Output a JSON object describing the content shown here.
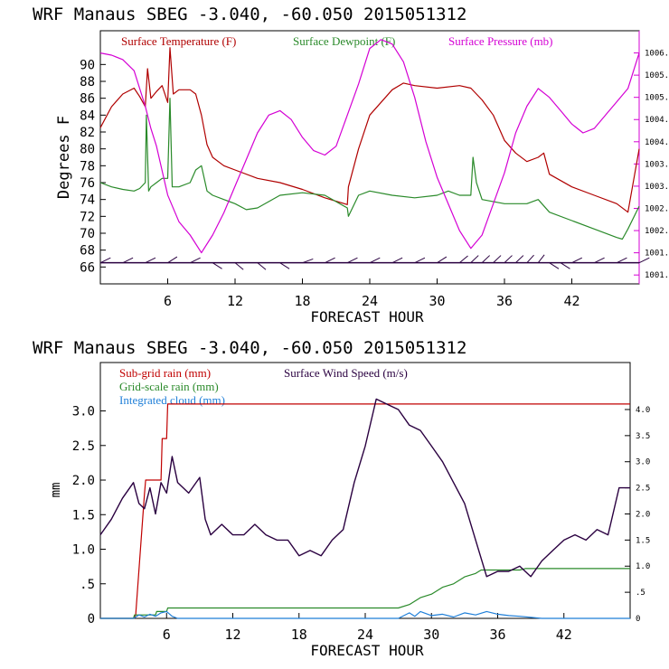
{
  "colors": {
    "temperature": "#b00000",
    "dewpoint": "#2a8a2a",
    "pressure": "#d400d4",
    "wind": "#2a0040",
    "subgrid_rain": "#c00000",
    "grid_rain": "#2a8a2a",
    "cloud": "#1f7fd8",
    "axis": "#000000"
  },
  "chart_data": [
    {
      "type": "line",
      "title": "WRF   Manaus SBEG   -3.040, -60.050  2015051312",
      "xlabel": "FORECAST HOUR",
      "ylabel": "Degrees F",
      "x_ticks": [
        "6",
        "12",
        "18",
        "24",
        "30",
        "36",
        "42"
      ],
      "x_tick_values": [
        6,
        12,
        18,
        24,
        30,
        36,
        42
      ],
      "xlim": [
        0,
        48
      ],
      "y_ticks": [
        "66",
        "68",
        "70",
        "72",
        "74",
        "76",
        "78",
        "80",
        "82",
        "84",
        "86",
        "88",
        "90"
      ],
      "y_tick_values": [
        66,
        68,
        70,
        72,
        74,
        76,
        78,
        80,
        82,
        84,
        86,
        88,
        90
      ],
      "ylim": [
        64,
        94
      ],
      "y2_ticks": [
        "1001.0",
        "1001.5",
        "1002.0",
        "1002.5",
        "1003.0",
        "1003.5",
        "1004.0",
        "1004.5",
        "1005.0",
        "1005.5",
        "1006.0"
      ],
      "y2_tick_values": [
        1001.0,
        1001.5,
        1002.0,
        1002.5,
        1003.0,
        1003.5,
        1004.0,
        1004.5,
        1005.0,
        1005.5,
        1006.0
      ],
      "y2lim": [
        1000.8,
        1006.5
      ],
      "grid": false,
      "legend": [
        "Surface Temperature (F)",
        "Surface Dewpoint (F)",
        "Surface Pressure (mb)"
      ],
      "legend_placement": "top",
      "series": [
        {
          "name": "Surface Temperature (F)",
          "axis": "left",
          "x": [
            0,
            1,
            2,
            3,
            3.5,
            4,
            4.2,
            4.5,
            5,
            5.5,
            6,
            6.2,
            6.5,
            7,
            8,
            8.5,
            9,
            9.5,
            10,
            11,
            12,
            14,
            16,
            18,
            20,
            22,
            22.1,
            23,
            24,
            26,
            27,
            28,
            30,
            32,
            33,
            34,
            35,
            36,
            37,
            38,
            39,
            39.5,
            40,
            42,
            44,
            46,
            47,
            48
          ],
          "y": [
            82.5,
            85,
            86.5,
            87.2,
            86.2,
            85,
            89.5,
            86,
            86.8,
            87.5,
            85.5,
            92,
            86.5,
            87,
            87,
            86.5,
            84,
            80.5,
            79,
            78,
            77.5,
            76.5,
            76,
            75.2,
            74.2,
            73.4,
            75.5,
            80,
            84,
            87,
            87.8,
            87.5,
            87.2,
            87.5,
            87.2,
            85.8,
            84,
            81,
            79.5,
            78.5,
            79,
            79.5,
            77,
            75.5,
            74.5,
            73.5,
            72.5,
            80
          ]
        },
        {
          "name": "Surface Dewpoint (F)",
          "axis": "left",
          "x": [
            0,
            1,
            2,
            3,
            3.5,
            4,
            4.1,
            4.3,
            4.5,
            5,
            5.5,
            6,
            6.2,
            6.4,
            7,
            8,
            8.5,
            9,
            9.5,
            10,
            11,
            12,
            13,
            14,
            16,
            18,
            20,
            22,
            22.1,
            23,
            24,
            26,
            28,
            30,
            31,
            32,
            33,
            33.2,
            33.5,
            34,
            36,
            38,
            39,
            40,
            42,
            44,
            46,
            46.5,
            47,
            48
          ],
          "y": [
            76,
            75.5,
            75.2,
            75,
            75.3,
            76,
            84,
            75,
            75.5,
            76,
            76.5,
            76.5,
            86,
            75.5,
            75.5,
            76,
            77.5,
            78,
            75,
            74.5,
            74,
            73.5,
            72.8,
            73,
            74.5,
            74.8,
            74.5,
            73,
            72,
            74.5,
            75,
            74.5,
            74.2,
            74.5,
            75,
            74.5,
            74.5,
            79,
            76,
            74,
            73.5,
            73.5,
            74,
            72.5,
            71.5,
            70.5,
            69.5,
            69.3,
            70.5,
            73.2
          ]
        },
        {
          "name": "Surface Pressure (mb)",
          "axis": "right",
          "x": [
            0,
            1,
            2,
            3,
            4,
            4.5,
            5,
            6,
            7,
            8,
            9,
            10,
            11,
            12,
            13,
            14,
            15,
            16,
            17,
            18,
            19,
            20,
            21,
            22,
            23,
            24,
            25,
            26,
            27,
            28,
            29,
            30,
            31,
            32,
            33,
            34,
            35,
            36,
            37,
            38,
            39,
            40,
            41,
            42,
            43,
            44,
            45,
            46,
            47,
            48
          ],
          "y": [
            1006.0,
            1005.95,
            1005.85,
            1005.6,
            1004.8,
            1004.3,
            1003.9,
            1002.8,
            1002.2,
            1001.9,
            1001.5,
            1001.9,
            1002.4,
            1003.0,
            1003.6,
            1004.2,
            1004.6,
            1004.7,
            1004.5,
            1004.1,
            1003.8,
            1003.7,
            1003.9,
            1004.6,
            1005.3,
            1006.1,
            1006.3,
            1006.2,
            1005.8,
            1005.0,
            1004.0,
            1003.2,
            1002.6,
            1002.0,
            1001.6,
            1001.9,
            1002.6,
            1003.3,
            1004.2,
            1004.8,
            1005.2,
            1005.0,
            1004.7,
            1004.4,
            1004.2,
            1004.3,
            1004.6,
            1004.9,
            1005.2,
            1006.0
          ]
        },
        {
          "name": "Surface Wind (barbs)",
          "axis": "left",
          "barb_y": 66.5,
          "x": [
            0,
            2,
            4,
            6,
            8,
            10,
            12,
            14,
            16,
            18,
            20,
            22,
            24,
            26,
            28,
            30,
            32,
            33,
            34,
            35,
            36,
            37,
            38,
            39,
            40,
            41,
            42,
            44,
            46,
            48
          ],
          "barb_angle": [
            20,
            20,
            20,
            30,
            20,
            -30,
            -40,
            -40,
            -30,
            10,
            20,
            20,
            20,
            20,
            20,
            30,
            40,
            45,
            45,
            45,
            45,
            45,
            50,
            55,
            -30,
            -30,
            20,
            20,
            20,
            20
          ]
        }
      ]
    },
    {
      "type": "line",
      "title": "WRF   Manaus SBEG   -3.040, -60.050  2015051312",
      "xlabel": "FORECAST HOUR",
      "ylabel": "mm",
      "x_ticks": [
        "6",
        "12",
        "18",
        "24",
        "30",
        "36",
        "42"
      ],
      "x_tick_values": [
        6,
        12,
        18,
        24,
        30,
        36,
        42
      ],
      "xlim": [
        0,
        48
      ],
      "y_ticks": [
        "0",
        ".5",
        "1.0",
        "1.5",
        "2.0",
        "2.5",
        "3.0"
      ],
      "y_tick_values": [
        0,
        0.5,
        1.0,
        1.5,
        2.0,
        2.5,
        3.0
      ],
      "ylim": [
        0,
        3.7
      ],
      "y2_ticks": [
        "0",
        ".5",
        "1.0",
        "1.5",
        "2.0",
        "2.5",
        "3.0",
        "3.5",
        "4.0"
      ],
      "y2_tick_values": [
        0,
        0.5,
        1.0,
        1.5,
        2.0,
        2.5,
        3.0,
        3.5,
        4.0
      ],
      "y2lim": [
        0,
        4.9
      ],
      "grid": false,
      "legend": [
        "Sub-grid rain (mm)",
        "Surface Wind Speed (m/s)",
        "Grid-scale rain (mm)",
        "Integrated cloud (mm)"
      ],
      "legend_placement": "top-left",
      "series": [
        {
          "name": "Sub-grid rain (mm)",
          "axis": "left",
          "x": [
            0,
            3,
            3.2,
            4,
            4.1,
            5.5,
            5.6,
            6,
            6.1,
            48
          ],
          "y": [
            0,
            0,
            0.05,
            1.8,
            2.0,
            2.0,
            2.6,
            2.6,
            3.1,
            3.1
          ]
        },
        {
          "name": "Grid-scale rain (mm)",
          "axis": "left",
          "x": [
            0,
            3,
            3.1,
            5,
            5.1,
            6,
            6.1,
            12,
            18,
            24,
            27,
            28,
            29,
            30,
            31,
            32,
            33,
            34,
            34.5,
            35,
            38,
            38.5,
            48
          ],
          "y": [
            0,
            0,
            0.05,
            0.05,
            0.1,
            0.1,
            0.15,
            0.15,
            0.15,
            0.15,
            0.15,
            0.2,
            0.3,
            0.35,
            0.45,
            0.5,
            0.6,
            0.65,
            0.7,
            0.7,
            0.7,
            0.72,
            0.72
          ]
        },
        {
          "name": "Integrated cloud (mm)",
          "axis": "left",
          "x": [
            0,
            3,
            3.5,
            4,
            4.5,
            5,
            5.5,
            6,
            6.5,
            7,
            12,
            24,
            27,
            28,
            28.5,
            29,
            30,
            31,
            32,
            33,
            34,
            35,
            36,
            37,
            38,
            40,
            48
          ],
          "y": [
            0,
            0,
            0.05,
            0.02,
            0.06,
            0.03,
            0.08,
            0.1,
            0.03,
            0,
            0,
            0,
            0,
            0.08,
            0.03,
            0.1,
            0.04,
            0.06,
            0.02,
            0.08,
            0.05,
            0.1,
            0.06,
            0.04,
            0.03,
            0,
            0
          ]
        },
        {
          "name": "Surface Wind Speed (m/s)",
          "axis": "right",
          "x": [
            0,
            1,
            2,
            3,
            3.5,
            4,
            4.5,
            5,
            5.5,
            6,
            6.5,
            7,
            8,
            9,
            9.5,
            10,
            11,
            12,
            13,
            14,
            15,
            16,
            17,
            18,
            19,
            20,
            21,
            22,
            23,
            24,
            25,
            26,
            27,
            28,
            29,
            30,
            31,
            32,
            33,
            34,
            35,
            36,
            37,
            38,
            39,
            40,
            41,
            42,
            43,
            44,
            45,
            46,
            47,
            48
          ],
          "y": [
            1.6,
            1.9,
            2.3,
            2.6,
            2.2,
            2.1,
            2.5,
            2.0,
            2.6,
            2.4,
            3.1,
            2.6,
            2.4,
            2.7,
            1.9,
            1.6,
            1.8,
            1.6,
            1.6,
            1.8,
            1.6,
            1.5,
            1.5,
            1.2,
            1.3,
            1.2,
            1.5,
            1.7,
            2.6,
            3.3,
            4.2,
            4.1,
            4.0,
            3.7,
            3.6,
            3.3,
            3.0,
            2.6,
            2.2,
            1.5,
            0.8,
            0.9,
            0.9,
            1.0,
            0.8,
            1.1,
            1.3,
            1.5,
            1.6,
            1.5,
            1.7,
            1.6,
            2.5,
            2.5
          ]
        }
      ]
    }
  ]
}
